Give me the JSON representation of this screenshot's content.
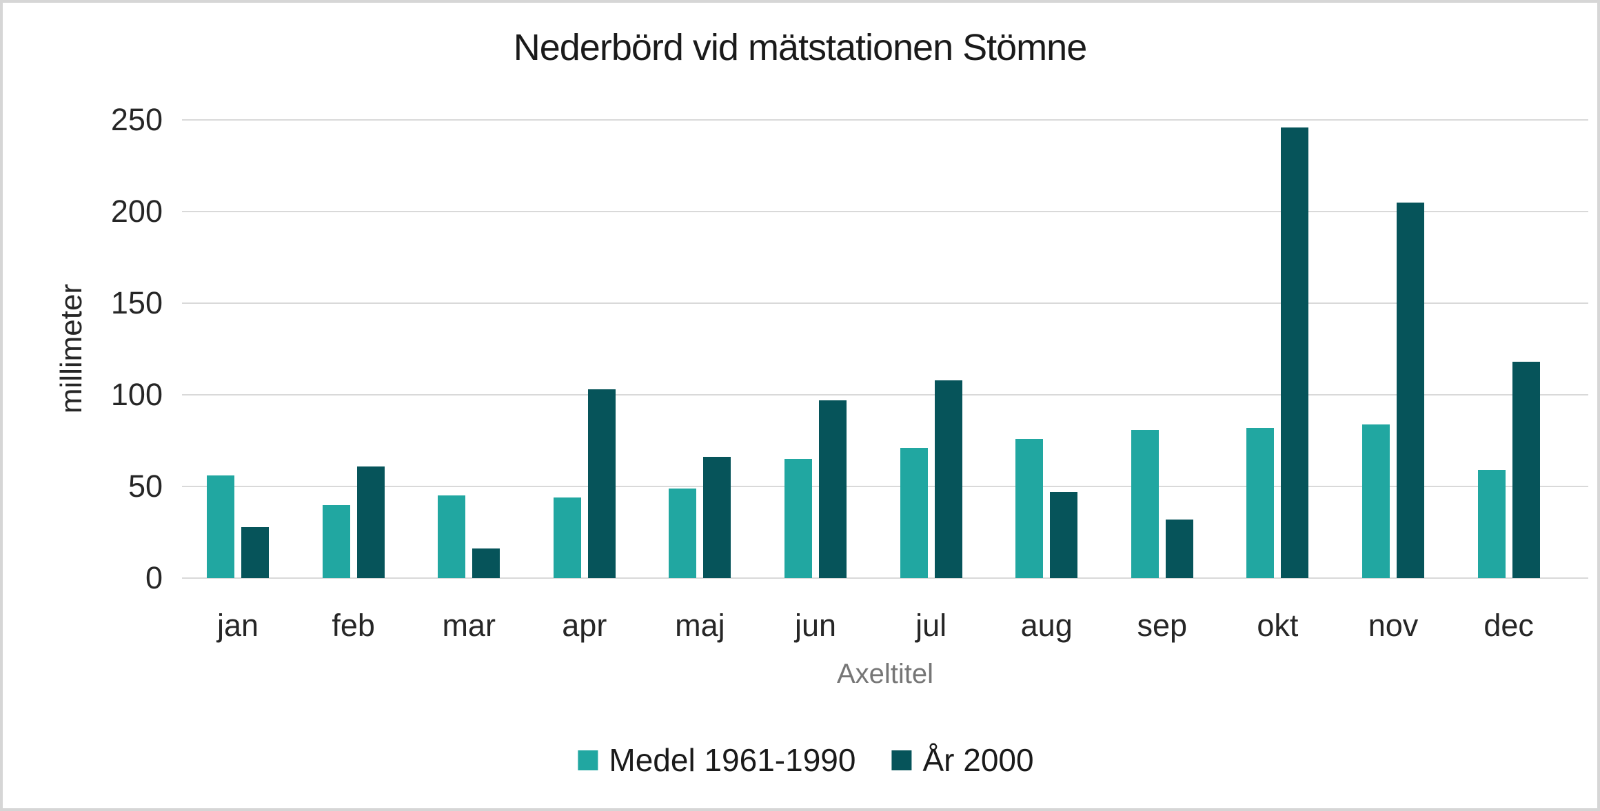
{
  "page": {
    "background_color": "#ffffff",
    "border_color": "#d6d6d6",
    "gridline_color": "#d9d9d9",
    "axis_text_color": "#262626",
    "title_text_color": "#1a1a1a",
    "x_axis_title_color": "#767676"
  },
  "chart_data": {
    "type": "bar",
    "title": "Nederbörd vid mätstationen Stömne",
    "categories": [
      "jan",
      "feb",
      "mar",
      "apr",
      "maj",
      "jun",
      "jul",
      "aug",
      "sep",
      "okt",
      "nov",
      "dec"
    ],
    "series": [
      {
        "name": "Medel 1961-1990",
        "color": "#21a7a1",
        "values": [
          56,
          40,
          45,
          44,
          49,
          65,
          71,
          76,
          81,
          82,
          84,
          59
        ]
      },
      {
        "name": "År 2000",
        "color": "#06545a",
        "values": [
          28,
          61,
          16,
          103,
          66,
          97,
          108,
          47,
          32,
          246,
          205,
          118
        ]
      }
    ],
    "xlabel": "Axeltitel",
    "ylabel": "millimeter",
    "ylim": [
      0,
      250
    ],
    "yticks": [
      0,
      50,
      100,
      150,
      200,
      250
    ],
    "grid": true,
    "legend_position": "bottom"
  }
}
